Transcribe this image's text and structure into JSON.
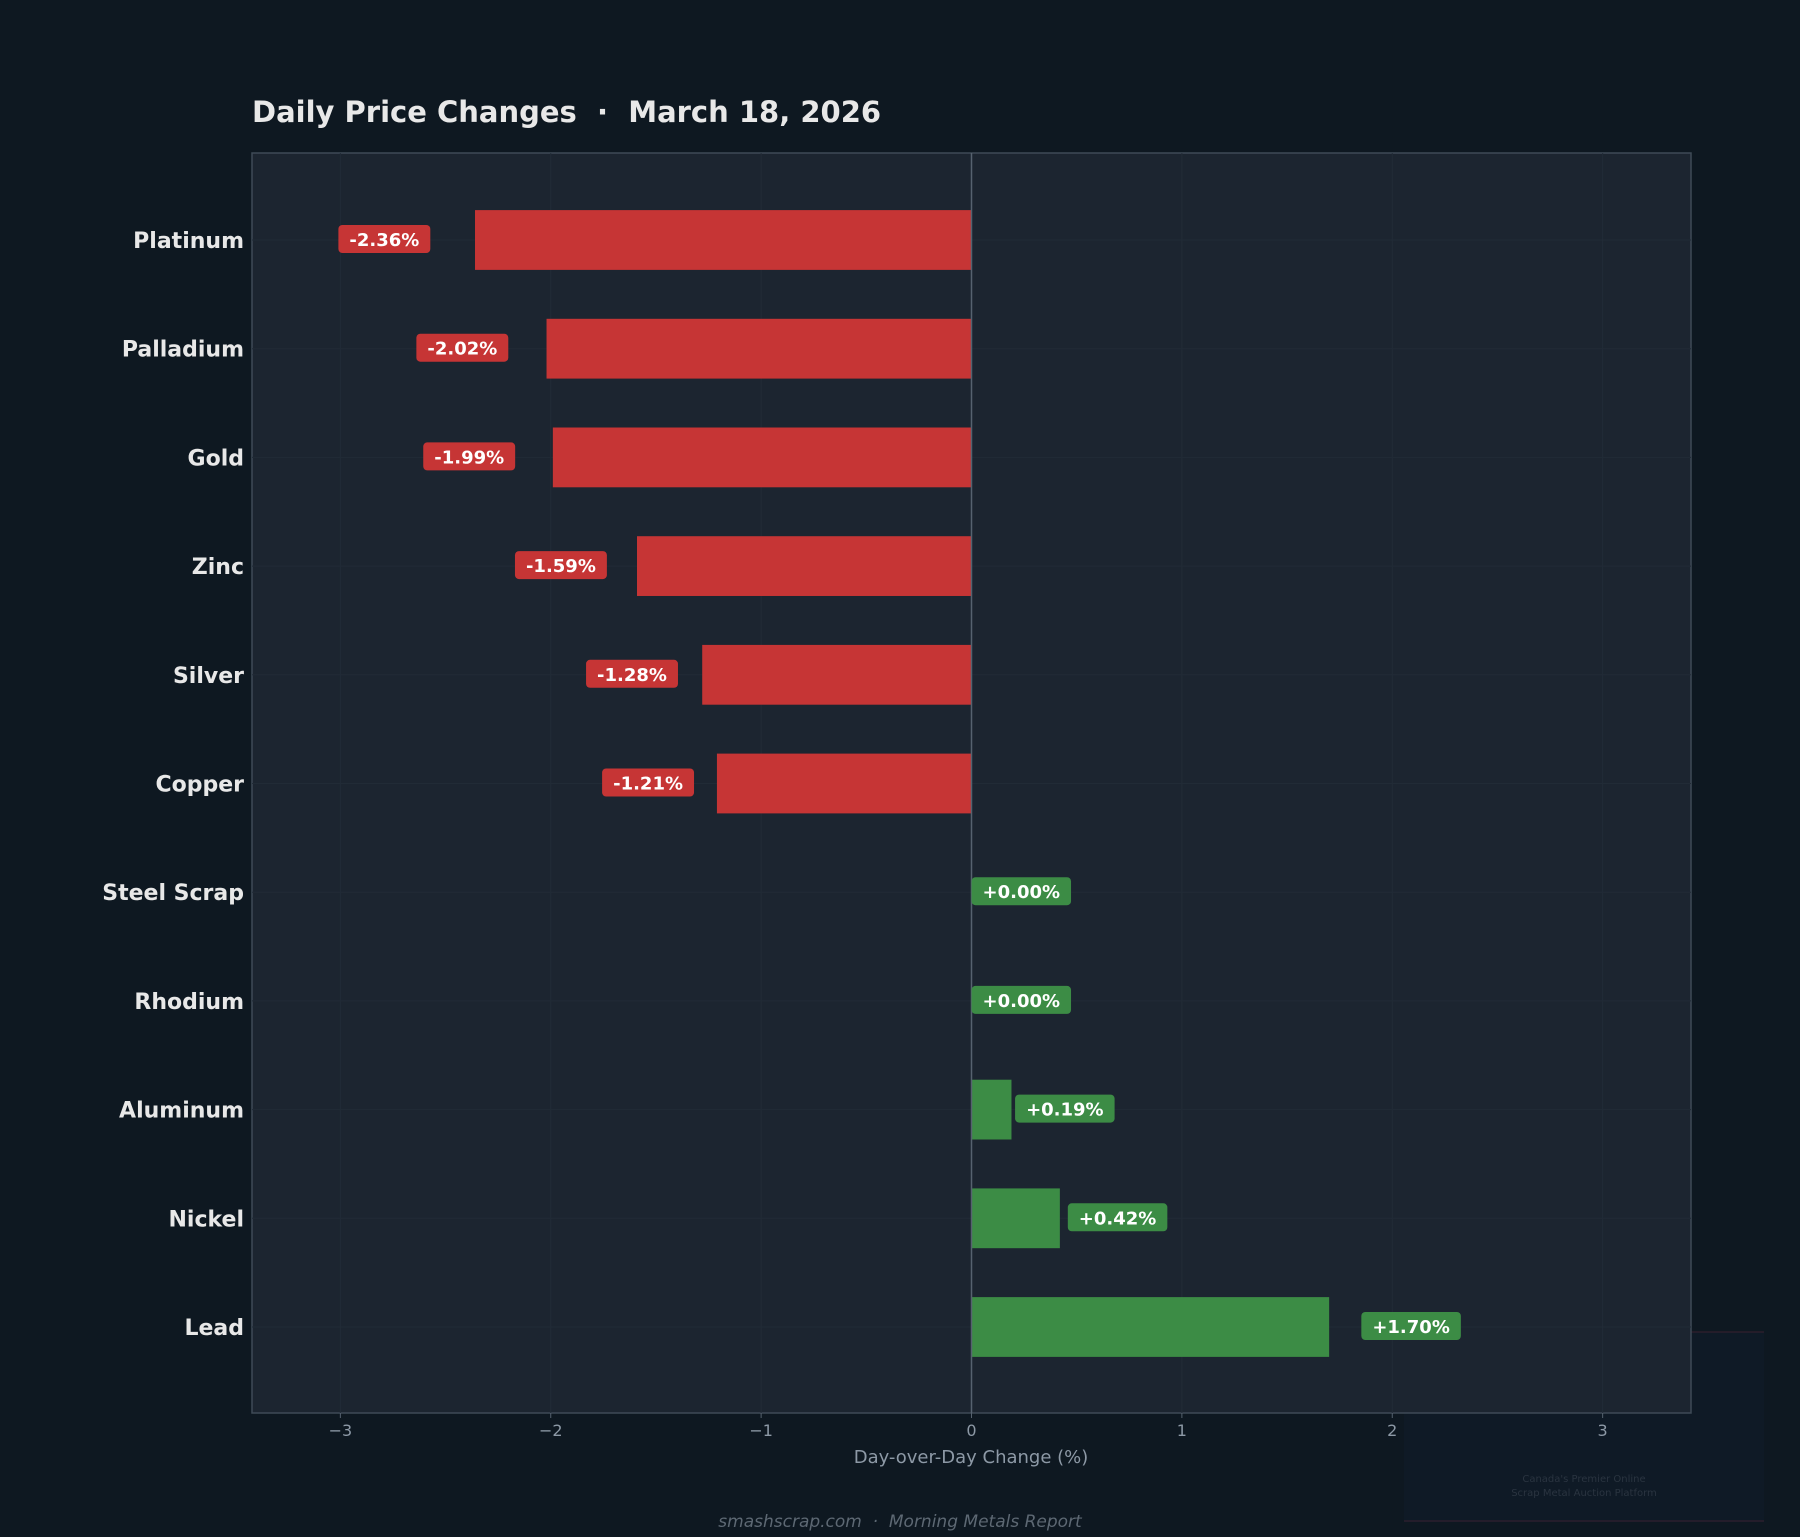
{
  "chart_data": {
    "type": "bar",
    "orientation": "horizontal",
    "title": "Daily Price Changes  ·  March 18, 2026",
    "xlabel": "Day-over-Day Change (%)",
    "ylabel": "",
    "xlim": [
      -3.42,
      3.42
    ],
    "xticks": [
      -3,
      -2,
      -1,
      0,
      1,
      2,
      3
    ],
    "xtick_labels": [
      "−3",
      "−2",
      "−1",
      "0",
      "1",
      "2",
      "3"
    ],
    "categories": [
      "Platinum",
      "Palladium",
      "Gold",
      "Zinc",
      "Silver",
      "Copper",
      "Steel Scrap",
      "Rhodium",
      "Aluminum",
      "Nickel",
      "Lead"
    ],
    "values": [
      -2.36,
      -2.02,
      -1.99,
      -1.59,
      -1.28,
      -1.21,
      0.0,
      0.0,
      0.19,
      0.42,
      1.7
    ],
    "data_labels": [
      "-2.36%",
      "-2.02%",
      "-1.99%",
      "-1.59%",
      "-1.28%",
      "-1.21%",
      "+0.00%",
      "+0.00%",
      "+0.19%",
      "+0.42%",
      "+1.70%"
    ],
    "grid": true,
    "colors": {
      "negative": "#c63535",
      "positive": "#3c8c45",
      "background": "#0e1821",
      "plot_background": "#1c2530"
    }
  },
  "footer": "smashscrap.com  ·  Morning Metals Report",
  "watermark": {
    "line1": "Canada's Premier Online",
    "line2": "Scrap Metal Auction Platform"
  }
}
